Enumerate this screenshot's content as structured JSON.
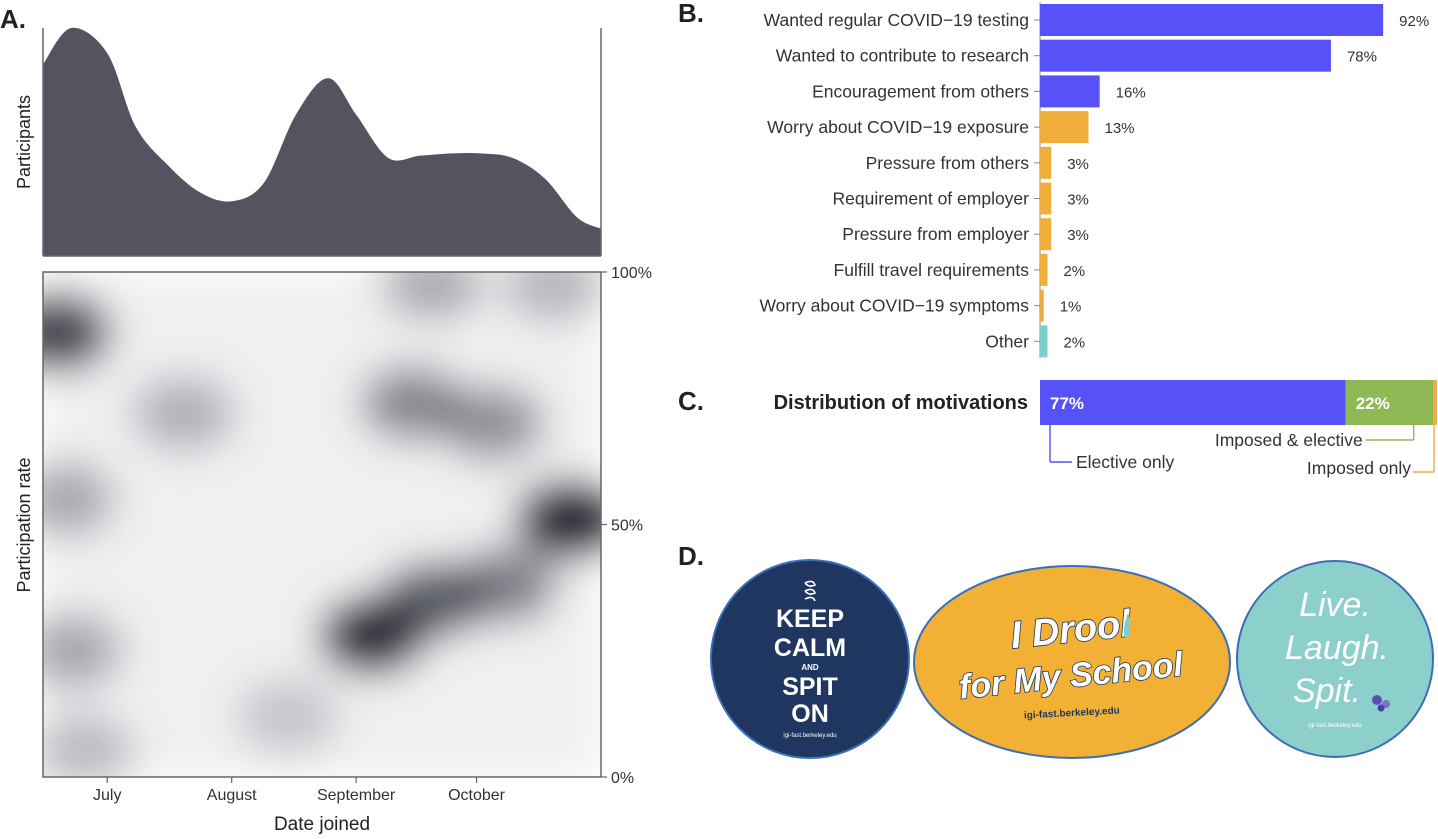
{
  "panels": {
    "a": "A.",
    "b": "B.",
    "c": "C.",
    "d": "D."
  },
  "chart_data": [
    {
      "id": "participants-density",
      "type": "area",
      "ylabel": "Participants",
      "x_ticks": [
        "July",
        "August",
        "September",
        "October"
      ],
      "x": [
        "2020-06-15",
        "2020-06-22",
        "2020-07-01",
        "2020-07-08",
        "2020-07-16",
        "2020-07-24",
        "2020-08-01",
        "2020-08-09",
        "2020-08-17",
        "2020-08-25",
        "2020-09-01",
        "2020-09-09",
        "2020-09-17",
        "2020-09-25",
        "2020-10-02",
        "2020-10-10",
        "2020-10-18",
        "2020-10-26",
        "2020-11-01"
      ],
      "y": [
        0.84,
        1.0,
        0.89,
        0.57,
        0.4,
        0.28,
        0.24,
        0.32,
        0.62,
        0.78,
        0.62,
        0.43,
        0.44,
        0.45,
        0.45,
        0.43,
        0.34,
        0.17,
        0.12
      ],
      "grid": false
    },
    {
      "id": "participation-rate-heatmap",
      "type": "heatmap",
      "xlabel": "Date joined",
      "ylabel": "Participation rate",
      "x_ticks": [
        "July",
        "August",
        "September",
        "October"
      ],
      "y_ticks": [
        "0%",
        "50%",
        "100%"
      ],
      "ylim": [
        0,
        100
      ],
      "color_scale": [
        "#ffffff",
        "#1d1f2b"
      ],
      "hotspots": [
        {
          "date": "2020-06-19",
          "rate": 88,
          "intensity": 0.85
        },
        {
          "date": "2020-06-20",
          "rate": 55,
          "intensity": 0.35
        },
        {
          "date": "2020-06-22",
          "rate": 25,
          "intensity": 0.35
        },
        {
          "date": "2020-07-20",
          "rate": 72,
          "intensity": 0.3
        },
        {
          "date": "2020-09-05",
          "rate": 28,
          "intensity": 0.95
        },
        {
          "date": "2020-09-20",
          "rate": 35,
          "intensity": 0.7
        },
        {
          "date": "2020-10-08",
          "rate": 38,
          "intensity": 0.55
        },
        {
          "date": "2020-09-15",
          "rate": 74,
          "intensity": 0.5
        },
        {
          "date": "2020-10-05",
          "rate": 70,
          "intensity": 0.45
        },
        {
          "date": "2020-10-24",
          "rate": 51,
          "intensity": 1.0
        },
        {
          "date": "2020-09-20",
          "rate": 98,
          "intensity": 0.35
        },
        {
          "date": "2020-10-20",
          "rate": 98,
          "intensity": 0.3
        },
        {
          "date": "2020-08-15",
          "rate": 12,
          "intensity": 0.2
        },
        {
          "date": "2020-06-25",
          "rate": 5,
          "intensity": 0.25
        }
      ]
    },
    {
      "id": "motivations",
      "type": "bar",
      "orientation": "horizontal",
      "categories": [
        "Wanted regular COVID−19 testing",
        "Wanted to contribute to research",
        "Encouragement from others",
        "Worry about COVID−19 exposure",
        "Pressure from others",
        "Requirement of employer",
        "Pressure from employer",
        "Fulfill travel requirements",
        "Worry about COVID−19 symptoms",
        "Other"
      ],
      "values": [
        92,
        78,
        16,
        13,
        3,
        3,
        3,
        2,
        1,
        2
      ],
      "value_labels": [
        "92%",
        "78%",
        "16%",
        "13%",
        "3%",
        "3%",
        "3%",
        "2%",
        "1%",
        "2%"
      ],
      "groups": [
        "elective",
        "elective",
        "elective",
        "imposed",
        "imposed",
        "imposed",
        "imposed",
        "imposed",
        "imposed",
        "other"
      ],
      "colors": {
        "elective": "#5652f7",
        "imposed": "#f0ad3a",
        "other": "#7ccfc8"
      }
    },
    {
      "id": "distribution-of-motivations",
      "type": "bar",
      "orientation": "stacked-horizontal",
      "title": "Distribution of motivations",
      "series": [
        {
          "name": "Elective only",
          "value": 77,
          "label": "77%",
          "color": "#5652f7"
        },
        {
          "name": "Imposed & elective",
          "value": 22,
          "label": "22%",
          "color": "#8fb954"
        },
        {
          "name": "Imposed only",
          "value": 1,
          "label": "",
          "color": "#f0ad3a"
        }
      ]
    }
  ],
  "stickers": {
    "keep_calm": {
      "lines": [
        "KEEP",
        "CALM",
        "AND",
        "SPIT",
        "ON"
      ],
      "url": "igi-fast.berkeley.edu"
    },
    "drool": {
      "line1": "I Drool",
      "line2": "for My School",
      "url": "igi-fast.berkeley.edu"
    },
    "live_laugh": {
      "lines": [
        "Live.",
        "Laugh.",
        "Spit."
      ],
      "url": "igi-fast.berkeley.edu"
    }
  }
}
